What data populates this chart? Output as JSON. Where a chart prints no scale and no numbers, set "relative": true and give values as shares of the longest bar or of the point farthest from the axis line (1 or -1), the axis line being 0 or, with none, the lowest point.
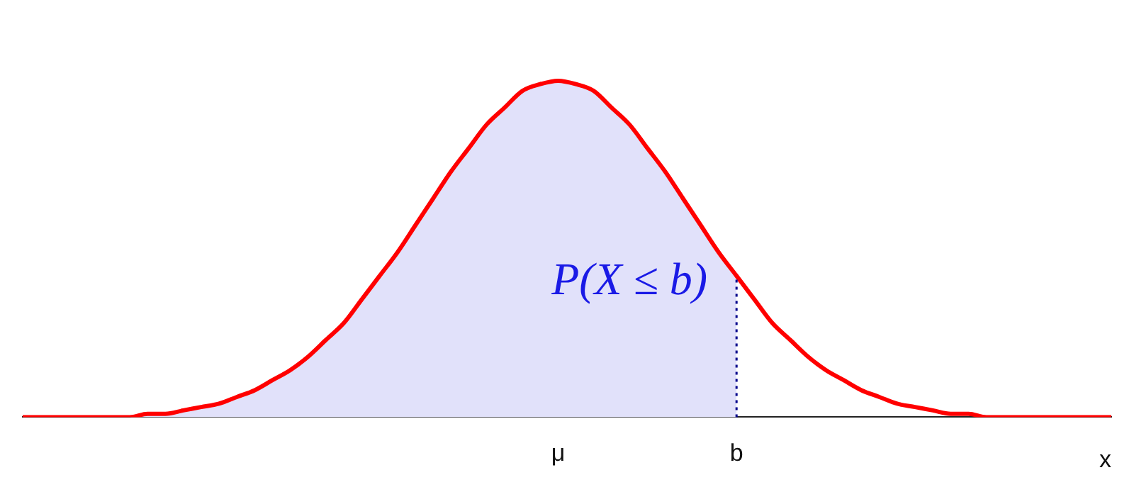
{
  "chart_data": {
    "type": "line",
    "relative": true,
    "xlabel": "x",
    "legend": false,
    "grid": false,
    "marker": "none",
    "categories": [
      null,
      null,
      null,
      null,
      null,
      null,
      null,
      null,
      null,
      null,
      null,
      null,
      null,
      null,
      null,
      null,
      null,
      null,
      null,
      null,
      null,
      null,
      null,
      null,
      null,
      null,
      null,
      null,
      null,
      null,
      "μ",
      null,
      null,
      null,
      null,
      null,
      null,
      null,
      null,
      null,
      "b",
      null,
      null,
      null,
      null,
      null,
      null,
      null,
      null,
      null,
      null,
      null,
      null,
      null,
      null,
      null,
      null,
      null,
      null,
      null,
      null,
      null
    ],
    "series": [
      {
        "type": "area",
        "color": "#e1e1fa",
        "values": [
          0,
          0,
          0,
          0,
          0,
          0,
          0,
          0.01,
          0.01,
          0.02,
          0.03,
          0.04,
          0.06,
          0.08,
          0.11,
          0.14,
          0.18,
          0.23,
          0.28,
          0.35,
          0.42,
          0.49,
          0.57,
          0.65,
          0.73,
          0.8,
          0.87,
          0.92,
          0.97,
          0.99,
          1,
          0.99,
          0.97,
          0.92,
          0.87,
          0.8,
          0.73,
          0.65,
          0.57,
          0.49,
          0.42,
          null,
          null,
          null,
          null,
          null,
          null,
          null,
          null,
          null,
          null,
          null,
          null,
          null,
          null,
          null,
          null,
          null,
          null,
          null,
          null,
          null
        ]
      },
      {
        "type": "line",
        "color": "#ff0000",
        "values": [
          0,
          0,
          0,
          0,
          0,
          0,
          0,
          0.01,
          0.01,
          0.02,
          0.03,
          0.04,
          0.06,
          0.08,
          0.11,
          0.14,
          0.18,
          0.23,
          0.28,
          0.35,
          0.42,
          0.49,
          0.57,
          0.65,
          0.73,
          0.8,
          0.87,
          0.92,
          0.97,
          0.99,
          1,
          0.99,
          0.97,
          0.92,
          0.87,
          0.8,
          0.73,
          0.65,
          0.57,
          0.49,
          0.42,
          0.35,
          0.28,
          0.23,
          0.18,
          0.14,
          0.11,
          0.08,
          0.06,
          0.04,
          0.03,
          0.02,
          0.01,
          0.01,
          0,
          0,
          0,
          0,
          0,
          0,
          0,
          0
        ]
      }
    ],
    "ref_lines": [
      {
        "axis": "x",
        "value": "b",
        "color": "#00008b",
        "line_style": "dotted"
      }
    ],
    "annotations": [
      "P(X ≤ b)"
    ]
  }
}
